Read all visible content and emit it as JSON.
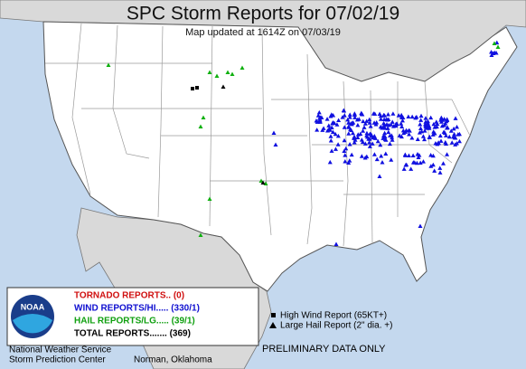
{
  "header": {
    "title": "SPC Storm Reports for 07/02/19",
    "subtitle": "Map updated at 1614Z on 07/03/19"
  },
  "legend": {
    "tornado": "TORNADO REPORTS.. (0)",
    "wind": "WIND REPORTS/HI..... (330/1)",
    "hail": "HAIL REPORTS/LG..... (39/1)",
    "total": "TOTAL REPORTS....... (369)"
  },
  "logo": "NOAA",
  "footer": {
    "agency": "National Weather Service",
    "center": "Storm Prediction Center",
    "location": "Norman, Oklahoma"
  },
  "key": {
    "high_wind": "High Wind Report (65KT+)",
    "large_hail": "Large Hail Report (2\" dia. +)"
  },
  "notice": "PRELIMINARY DATA ONLY"
}
